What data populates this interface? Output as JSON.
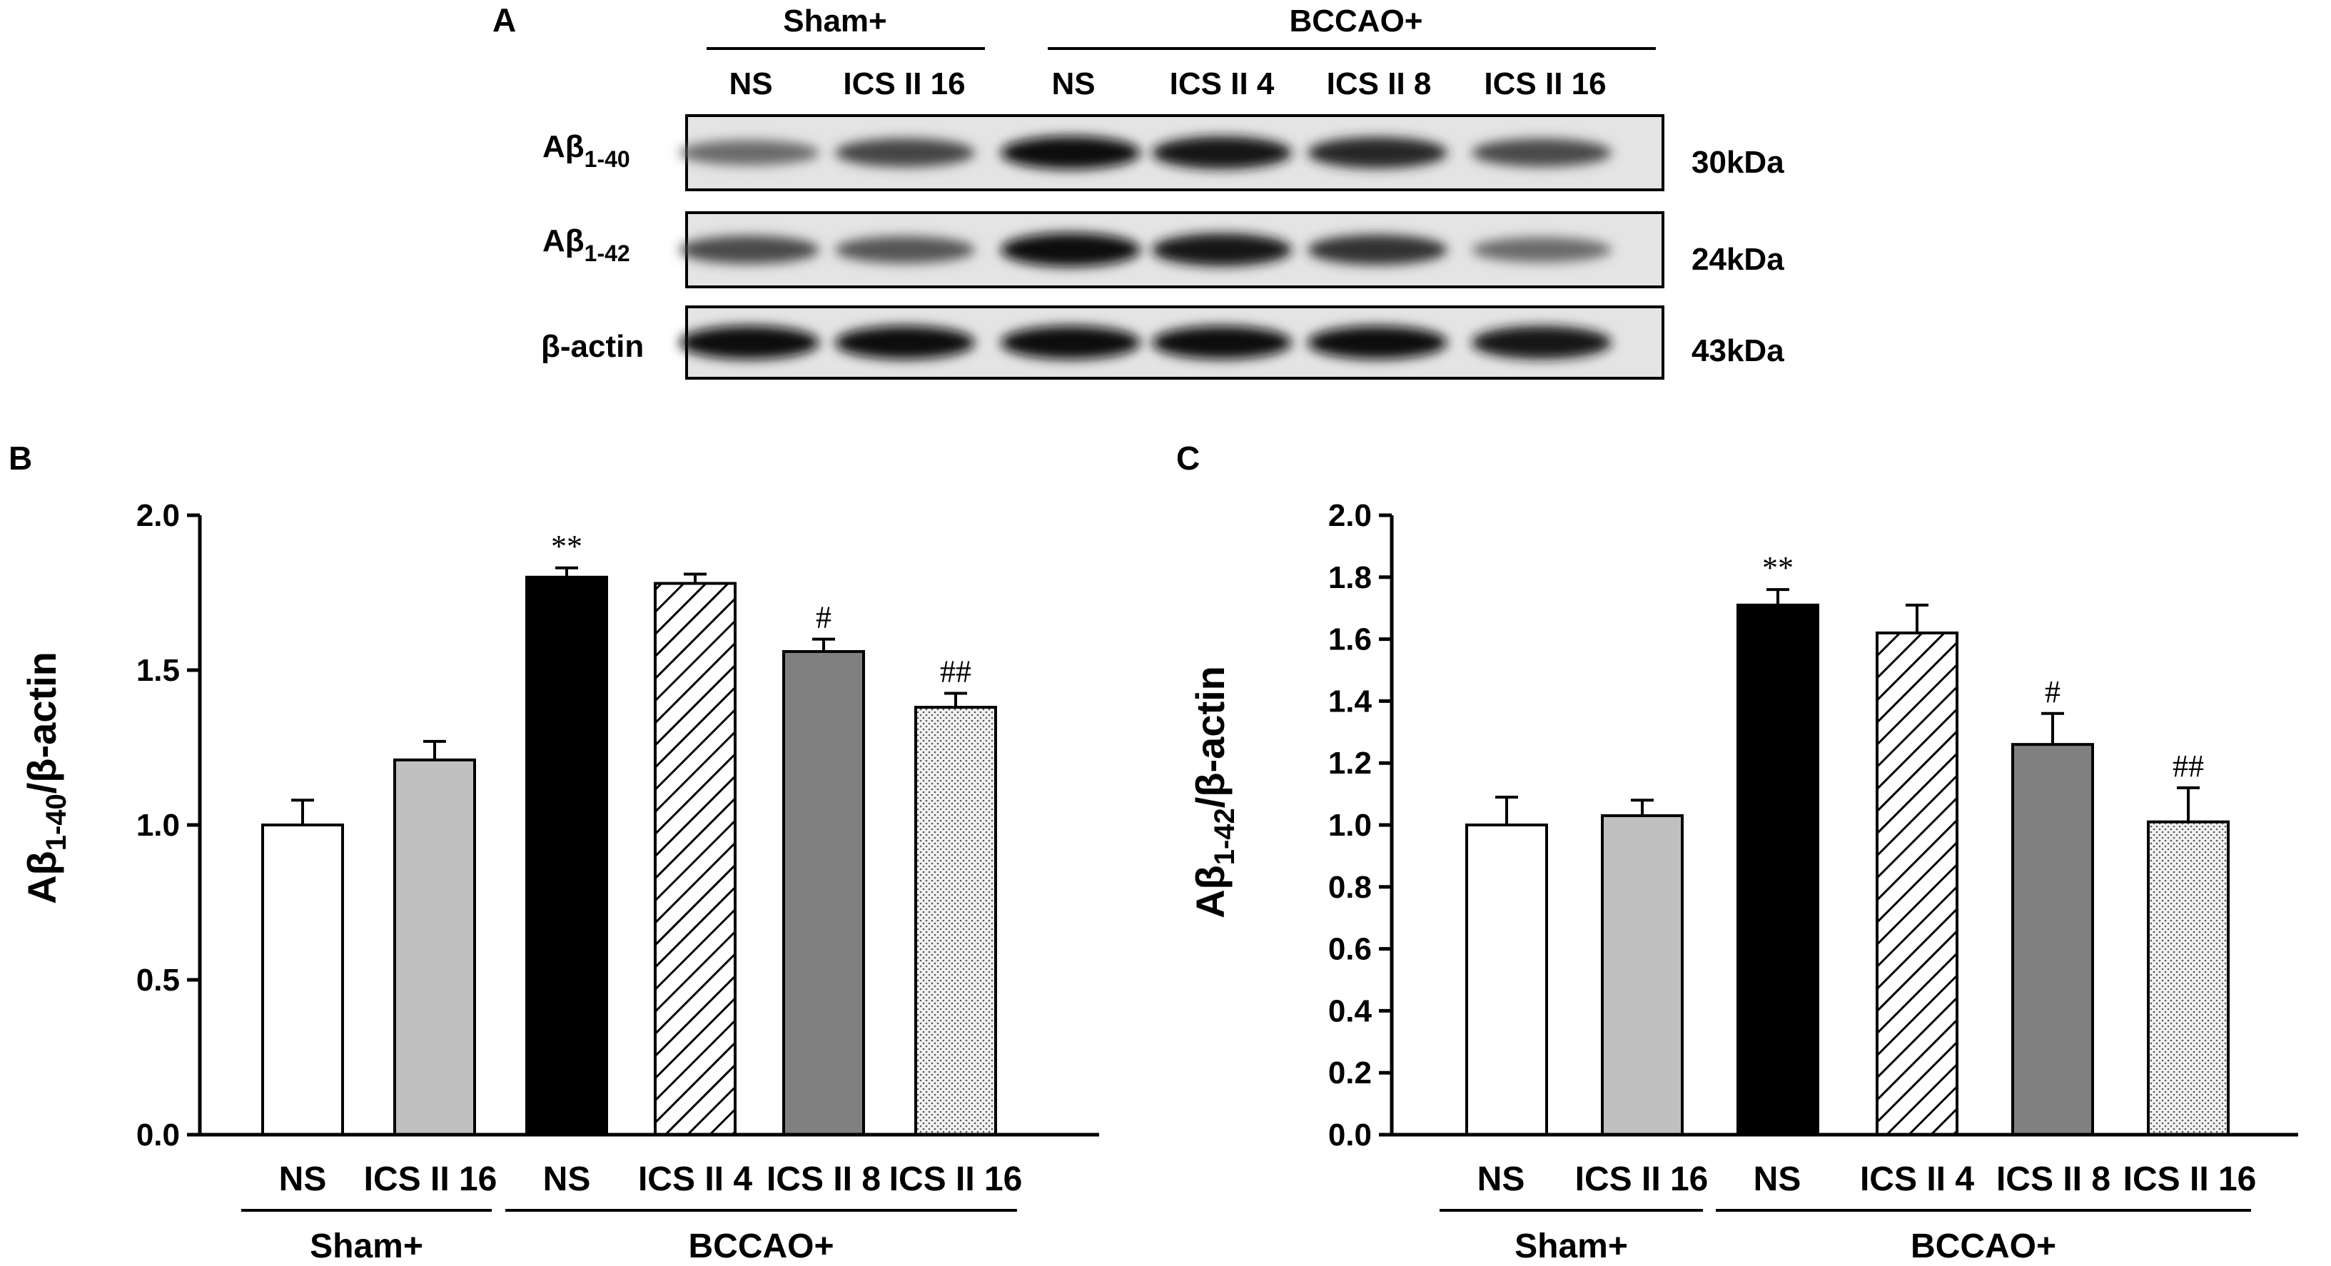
{
  "panel_a": {
    "letter": "A",
    "groups": [
      "Sham+",
      "BCCAO+"
    ],
    "lanes": [
      "NS",
      "ICS II 16",
      "NS",
      "ICS II 4",
      "ICS II 8",
      "ICS II 16"
    ],
    "rows": [
      {
        "label_main": "Aβ",
        "label_sub": "1-40",
        "size": "30kDa",
        "intensities": [
          0.55,
          0.72,
          0.95,
          0.92,
          0.85,
          0.7
        ]
      },
      {
        "label_main": "Aβ",
        "label_sub": "1-42",
        "size": "24kDa",
        "intensities": [
          0.7,
          0.65,
          0.98,
          0.92,
          0.8,
          0.55
        ]
      },
      {
        "label_main": "β-actin",
        "label_sub": "",
        "size": "43kDa",
        "intensities": [
          0.97,
          0.96,
          0.96,
          0.95,
          0.95,
          0.94
        ]
      }
    ]
  },
  "chart_data": [
    {
      "type": "bar",
      "letter": "B",
      "ylabel_main": "Aβ",
      "ylabel_sub": "1-40",
      "ylabel_tail": "/β-actin",
      "categories": [
        "NS",
        "ICS II 16",
        "NS",
        "ICS II 4",
        "ICS II 8",
        "ICS II 16"
      ],
      "groups": [
        {
          "label": "Sham+",
          "from": 0,
          "to": 1
        },
        {
          "label": "BCCAO+",
          "from": 2,
          "to": 5
        }
      ],
      "values": [
        1.0,
        1.21,
        1.8,
        1.78,
        1.56,
        1.38
      ],
      "errors": [
        0.08,
        0.06,
        0.03,
        0.03,
        0.04,
        0.045
      ],
      "significance": [
        "",
        "",
        "**",
        "",
        "#",
        "##"
      ],
      "fills": [
        "white",
        "lightgray",
        "black",
        "hatch",
        "gray",
        "dots"
      ],
      "ylim": [
        0,
        2.0
      ],
      "yticks": [
        "0.0",
        "0.5",
        "1.0",
        "1.5",
        "2.0"
      ],
      "grid": false
    },
    {
      "type": "bar",
      "letter": "C",
      "ylabel_main": "Aβ",
      "ylabel_sub": "1-42",
      "ylabel_tail": "/β-actin",
      "categories": [
        "NS",
        "ICS II 16",
        "NS",
        "ICS II 4",
        "ICS II 8",
        "ICS II 16"
      ],
      "groups": [
        {
          "label": "Sham+",
          "from": 0,
          "to": 1
        },
        {
          "label": "BCCAO+",
          "from": 2,
          "to": 5
        }
      ],
      "values": [
        1.0,
        1.03,
        1.71,
        1.62,
        1.26,
        1.01
      ],
      "errors": [
        0.09,
        0.05,
        0.05,
        0.09,
        0.1,
        0.11
      ],
      "significance": [
        "",
        "",
        "**",
        "",
        "#",
        "##"
      ],
      "fills": [
        "white",
        "lightgray",
        "black",
        "hatch",
        "gray",
        "dots"
      ],
      "ylim": [
        0,
        2.0
      ],
      "yticks": [
        "0.0",
        "0.2",
        "0.4",
        "0.6",
        "0.8",
        "1.0",
        "1.2",
        "1.4",
        "1.6",
        "1.8",
        "2.0"
      ],
      "grid": false
    }
  ]
}
